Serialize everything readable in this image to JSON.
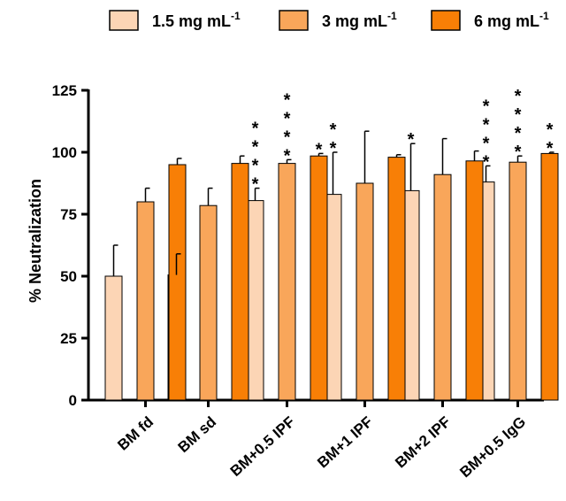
{
  "chart_data": {
    "type": "bar",
    "title": "",
    "xlabel": "",
    "ylabel": "% Neutralization",
    "ylim": [
      0,
      125
    ],
    "yticks": [
      0,
      25,
      50,
      75,
      100,
      125
    ],
    "grid": false,
    "legend_position": "top",
    "categories": [
      "BM fd",
      "BM sd",
      "BM+0.5 IPF",
      "BM+1 IPF",
      "BM+2 IPF",
      "BM+0.5 IgG"
    ],
    "series": [
      {
        "name": "1.5 mg mL",
        "name_sup": "-1",
        "color": "#FCD5B5",
        "values": [
          50,
          50.5,
          80.5,
          83,
          84.5,
          88
        ],
        "errors": [
          12.5,
          8.5,
          5,
          17,
          19,
          6.5
        ],
        "significance": [
          "",
          "",
          "****",
          "**",
          "*",
          "****"
        ]
      },
      {
        "name": "3 mg mL",
        "name_sup": "-1",
        "color": "#F9A65A",
        "values": [
          80,
          78.5,
          95.5,
          87.5,
          91,
          96
        ],
        "errors": [
          5.5,
          7,
          1.5,
          21,
          14.5,
          2.5
        ],
        "significance": [
          "",
          "",
          "****",
          "",
          "",
          "****"
        ]
      },
      {
        "name": "6 mg mL",
        "name_sup": "-1",
        "color": "#F87F06",
        "values": [
          95,
          95.5,
          98.5,
          98,
          96.5,
          99.5
        ],
        "errors": [
          2.5,
          3,
          1,
          1,
          4,
          0.5
        ],
        "significance": [
          "",
          "",
          "*",
          "",
          "",
          "**"
        ]
      }
    ]
  }
}
